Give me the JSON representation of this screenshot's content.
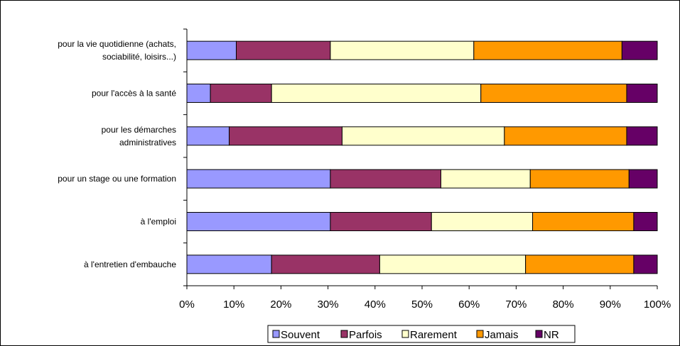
{
  "chart_data": {
    "type": "bar",
    "orientation": "horizontal",
    "stacked": true,
    "percent_stacked": true,
    "categories": [
      [
        "pour la vie quotidienne (achats,",
        "sociabilité, loisirs...)"
      ],
      [
        "pour l'accès à la santé"
      ],
      [
        "pour les démarches",
        "administratives"
      ],
      [
        "pour un stage ou une formation"
      ],
      [
        "à l'emploi"
      ],
      [
        "à l'entretien d'embauche"
      ]
    ],
    "series": [
      {
        "name": "Souvent",
        "color": "#9999ff",
        "values": [
          10.5,
          5.0,
          9.0,
          30.5,
          30.5,
          18.0
        ]
      },
      {
        "name": "Parfois",
        "color": "#993366",
        "values": [
          20.0,
          13.0,
          24.0,
          23.5,
          21.5,
          23.0
        ]
      },
      {
        "name": "Rarement",
        "color": "#ffffcc",
        "values": [
          30.5,
          44.5,
          34.5,
          19.0,
          21.5,
          31.0
        ]
      },
      {
        "name": "Jamais",
        "color": "#ff9900",
        "values": [
          31.5,
          31.0,
          26.0,
          21.0,
          21.5,
          23.0
        ]
      },
      {
        "name": "NR",
        "color": "#660066",
        "values": [
          7.5,
          6.5,
          6.5,
          6.0,
          5.0,
          5.0
        ]
      }
    ],
    "xlim": [
      0,
      100
    ],
    "x_ticks": [
      "0%",
      "10%",
      "20%",
      "30%",
      "40%",
      "50%",
      "60%",
      "70%",
      "80%",
      "90%",
      "100%"
    ],
    "title": "",
    "xlabel": "",
    "ylabel": "",
    "grid": false,
    "legend_position": "bottom"
  }
}
